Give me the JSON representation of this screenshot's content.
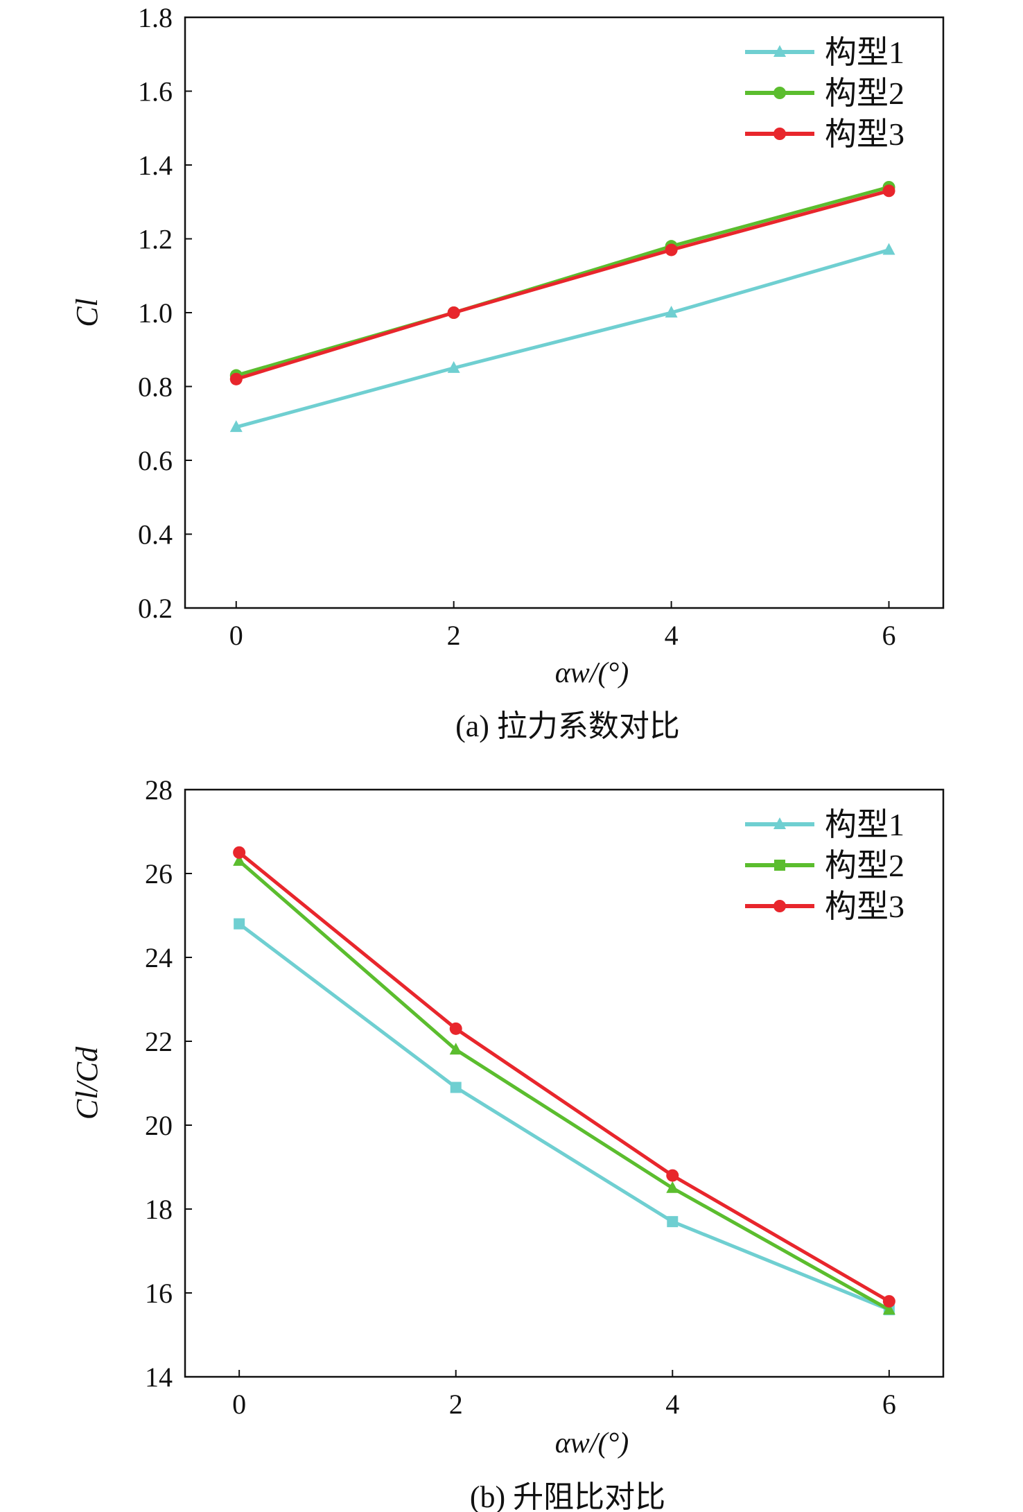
{
  "chart_data": [
    {
      "type": "line",
      "caption": "(a) 拉力系数对比",
      "xlabel": "αw/(°)",
      "ylabel": "Cl",
      "x": [
        0,
        2,
        4,
        6
      ],
      "xticks": [
        0,
        2,
        4,
        6
      ],
      "yticks": [
        0.2,
        0.4,
        0.6,
        0.8,
        1.0,
        1.2,
        1.4,
        1.6,
        1.8
      ],
      "ylim": [
        0.2,
        1.8
      ],
      "xlim": [
        -0.47,
        6.5
      ],
      "grid": false,
      "legend": "top-right",
      "series": [
        {
          "name": "构型1",
          "color": "#6fcfd1",
          "marker": "triangle",
          "values": [
            0.69,
            0.85,
            1.0,
            1.17
          ]
        },
        {
          "name": "构型2",
          "color": "#5bbd2e",
          "marker": "circle",
          "values": [
            0.83,
            1.0,
            1.18,
            1.34
          ]
        },
        {
          "name": "构型3",
          "color": "#e8262c",
          "marker": "circle",
          "values": [
            0.82,
            1.0,
            1.17,
            1.33
          ]
        }
      ]
    },
    {
      "type": "line",
      "caption": "(b) 升阻比对比",
      "xlabel": "αw/(°)",
      "ylabel": "Cl/Cd",
      "x": [
        0,
        2,
        4,
        6
      ],
      "xticks": [
        0,
        2,
        4,
        6
      ],
      "yticks": [
        14,
        16,
        18,
        20,
        22,
        24,
        26,
        28
      ],
      "ylim": [
        14,
        28
      ],
      "xlim": [
        -0.5,
        6.5
      ],
      "grid": false,
      "legend": "top-right",
      "series": [
        {
          "name": "构型1",
          "color": "#6fcfd1",
          "marker": "square",
          "legend_marker": "triangle",
          "values": [
            24.8,
            20.9,
            17.7,
            15.6
          ]
        },
        {
          "name": "构型2",
          "color": "#5bbd2e",
          "marker": "triangle",
          "legend_marker": "square",
          "values": [
            26.3,
            21.8,
            18.5,
            15.6
          ]
        },
        {
          "name": "构型3",
          "color": "#e8262c",
          "marker": "circle",
          "values": [
            26.5,
            22.3,
            18.8,
            15.8
          ]
        }
      ]
    }
  ]
}
